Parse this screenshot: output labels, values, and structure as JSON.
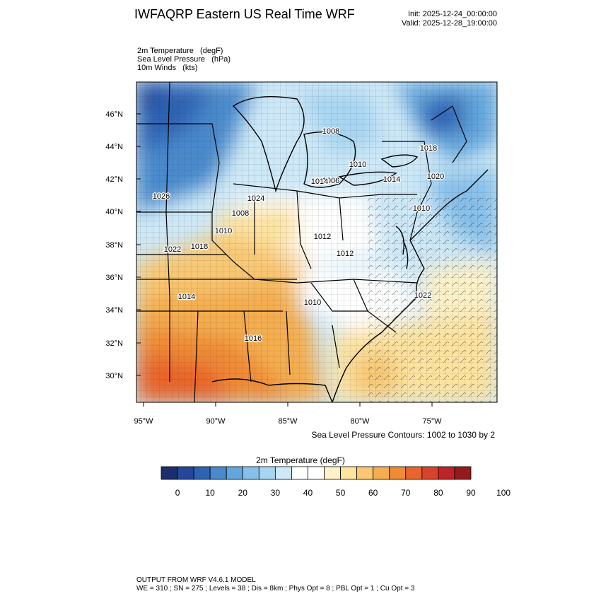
{
  "header": {
    "title": "IWFAQRP Eastern US Real Time WRF",
    "init": "Init: 2025-12-24_00:00:00",
    "valid": "Valid: 2025-12-28_19:00:00"
  },
  "variables": [
    "2m Temperature   (degF)",
    "Sea Level Pressure   (hPa)",
    "10m Winds   (kts)"
  ],
  "map": {
    "lat_labels": [
      "46°N",
      "44°N",
      "42°N",
      "40°N",
      "38°N",
      "36°N",
      "34°N",
      "32°N",
      "30°N"
    ],
    "lon_labels": [
      "95°W",
      "90°W",
      "85°W",
      "80°W",
      "75°W"
    ],
    "pressure_labels": [
      "1026",
      "1008",
      "1006",
      "1010",
      "1018",
      "1014",
      "1020",
      "1024",
      "1008",
      "1010",
      "1022",
      "1018",
      "1012",
      "1012",
      "1014",
      "1010",
      "1016",
      "1022",
      "1010",
      "1014"
    ],
    "contour_note": "Sea Level Pressure Contours: 1002 to 1030 by 2"
  },
  "colorbar": {
    "title": "2m Temperature  (degF)",
    "tick_labels": [
      "0",
      "10",
      "20",
      "30",
      "40",
      "50",
      "60",
      "70",
      "80",
      "90",
      "100"
    ],
    "colors": [
      "#1c2e6e",
      "#24479a",
      "#2e63b4",
      "#4a89cc",
      "#62a6dd",
      "#86c0ea",
      "#a8d5f2",
      "#cde8f7",
      "#ffffff",
      "#ffffff",
      "#fff2c8",
      "#fde3a0",
      "#f8c874",
      "#f4ad4f",
      "#ef8a35",
      "#e8652c",
      "#d8432b",
      "#bd2426",
      "#951a1d"
    ]
  },
  "model_info": {
    "line1": "OUTPUT FROM WRF V4.6.1 MODEL",
    "line2": "WE = 310 ; SN = 275 ; Levels = 38 ; Dis = 8km ; Phys Opt = 8 ; PBL Opt = 1 ; Cu Opt = 3"
  }
}
